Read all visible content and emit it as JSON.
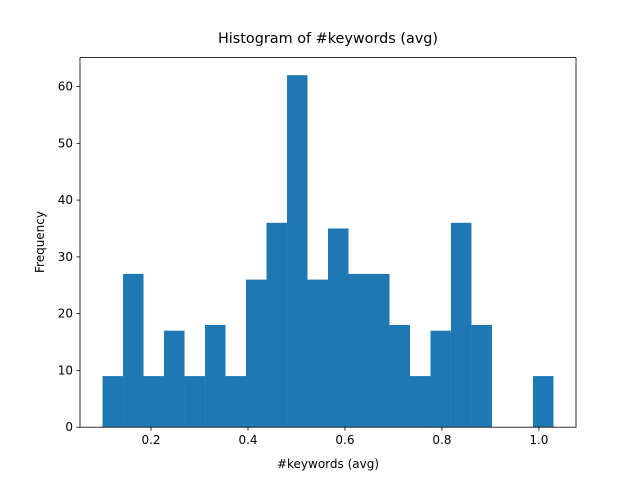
{
  "chart_data": {
    "type": "histogram",
    "title": "Histogram of #keywords (avg)",
    "x_label": "#keywords (avg)",
    "y_label": "Frequency",
    "bins": [
      0.1,
      0.1423,
      0.1845,
      0.2268,
      0.2691,
      0.3114,
      0.3536,
      0.3959,
      0.4382,
      0.4805,
      0.5227,
      0.565,
      0.6073,
      0.6495,
      0.6918,
      0.7341,
      0.7764,
      0.8186,
      0.8609,
      0.9032,
      0.9455,
      0.9877,
      1.03
    ],
    "values": [
      9,
      27,
      9,
      17,
      9,
      18,
      9,
      26,
      36,
      62,
      26,
      35,
      27,
      27,
      18,
      9,
      17,
      36,
      18,
      0,
      0,
      9
    ],
    "color": "#1f77b4",
    "xlim": [
      0.0535,
      1.0765
    ],
    "xticks": [
      0.2,
      0.4,
      0.6,
      0.8,
      {
        "value": 1,
        "label": "1.0"
      }
    ],
    "ylim": [
      0,
      65.1
    ],
    "yticks": [
      0,
      10,
      20,
      30,
      40,
      50,
      60
    ]
  }
}
